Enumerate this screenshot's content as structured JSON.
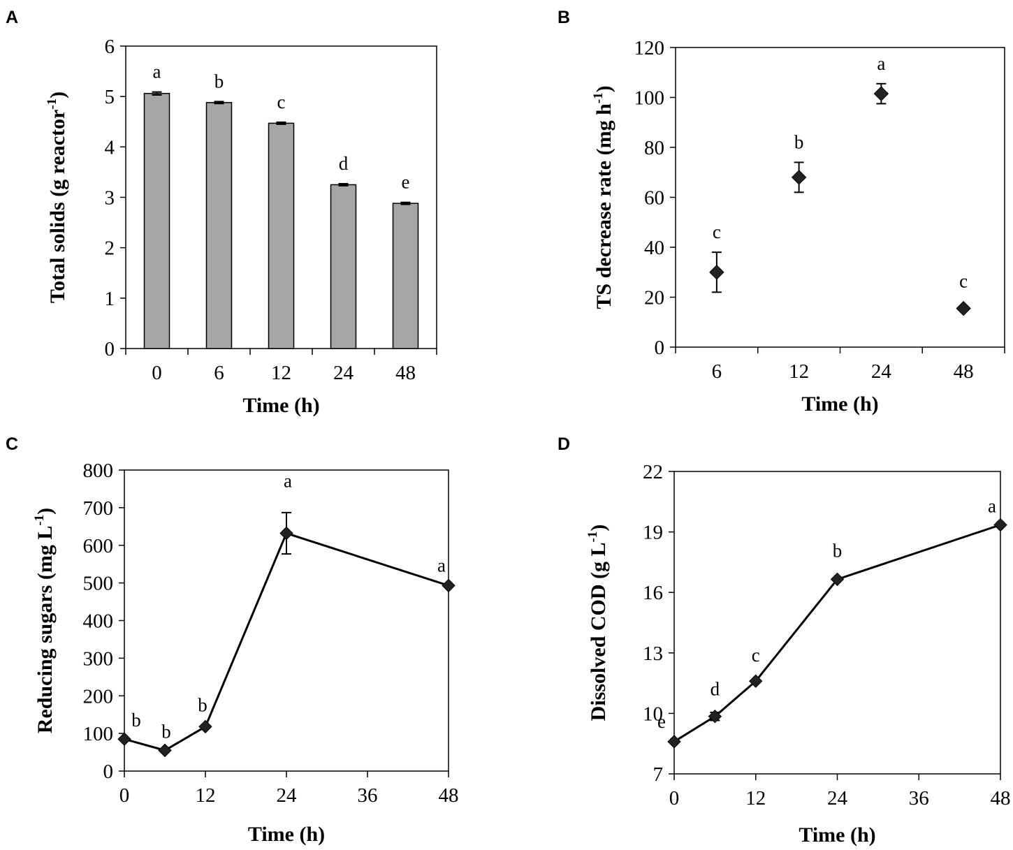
{
  "chart_data": [
    {
      "panel": "A",
      "type": "bar",
      "categories": [
        "0",
        "6",
        "12",
        "24",
        "48"
      ],
      "values": [
        5.06,
        4.88,
        4.47,
        3.25,
        2.88
      ],
      "errors": [
        0.03,
        0.02,
        0.02,
        0.02,
        0.02
      ],
      "significance": [
        "a",
        "b",
        "c",
        "d",
        "e"
      ],
      "xlabel": "Time (h)",
      "ylabel_main": "Total solids (g reactor",
      "ylabel_sup": "-1",
      "ylabel_end": ")",
      "ylim": [
        0,
        6
      ],
      "yticks": [
        0,
        1,
        2,
        3,
        4,
        5,
        6
      ],
      "bar_color": "#a6a6a6"
    },
    {
      "panel": "B",
      "type": "scatter",
      "categories": [
        "6",
        "12",
        "24",
        "48"
      ],
      "values": [
        30,
        68,
        101.5,
        15.5
      ],
      "errors": [
        8,
        6,
        4,
        0.5
      ],
      "significance": [
        "c",
        "b",
        "a",
        "c"
      ],
      "xlabel": "Time (h)",
      "ylabel_main": "TS decrease rate (mg h",
      "ylabel_sup": "-1",
      "ylabel_end": ")",
      "ylim": [
        0,
        120
      ],
      "yticks": [
        0,
        20,
        40,
        60,
        80,
        100,
        120
      ]
    },
    {
      "panel": "C",
      "type": "line",
      "x": [
        0,
        6,
        12,
        24,
        48
      ],
      "values": [
        85,
        55,
        118,
        632,
        493
      ],
      "errors": [
        0,
        0,
        0,
        55,
        0
      ],
      "significance": [
        "b",
        "b",
        "b",
        "a",
        "a"
      ],
      "xlabel": "Time (h)",
      "ylabel_main": "Reducing sugars (mg L",
      "ylabel_sup": "-1",
      "ylabel_end": ")",
      "xlim": [
        0,
        48
      ],
      "xticks": [
        0,
        12,
        24,
        36,
        48
      ],
      "ylim": [
        0,
        800
      ],
      "yticks": [
        0,
        100,
        200,
        300,
        400,
        500,
        600,
        700,
        800
      ]
    },
    {
      "panel": "D",
      "type": "line",
      "x": [
        0,
        6,
        12,
        24,
        48
      ],
      "values": [
        8.6,
        9.85,
        11.6,
        16.65,
        19.35
      ],
      "errors": [
        0,
        0.2,
        0,
        0,
        0
      ],
      "significance": [
        "e",
        "d",
        "c",
        "b",
        "a"
      ],
      "xlabel": "Time (h)",
      "ylabel_main": "Dissolved COD (g L",
      "ylabel_sup": "-1",
      "ylabel_end": ")",
      "xlim": [
        0,
        48
      ],
      "xticks": [
        0,
        12,
        24,
        36,
        48
      ],
      "ylim": [
        7,
        22
      ],
      "yticks": [
        7,
        10,
        13,
        16,
        19,
        22
      ]
    }
  ]
}
